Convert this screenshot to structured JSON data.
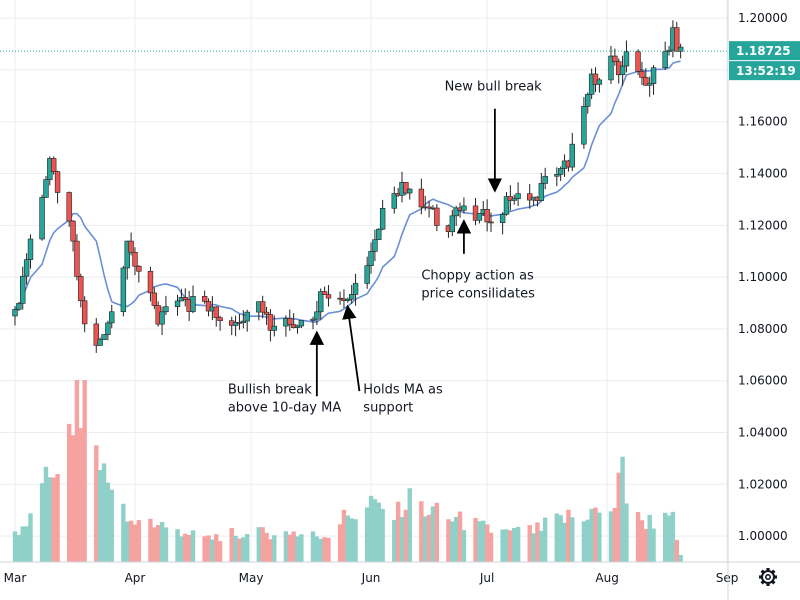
{
  "chart_data": {
    "type": "candlestick",
    "ylim": [
      0.99,
      1.207
    ],
    "y_ticks": [
      "1.20000",
      "1.18000",
      "1.16000",
      "1.14000",
      "1.12000",
      "1.10000",
      "1.08000",
      "1.06000",
      "1.04000",
      "1.02000",
      "1.00000"
    ],
    "x_labels": [
      {
        "label": "Mar",
        "day": 0
      },
      {
        "label": "Apr",
        "day": 31
      },
      {
        "label": "May",
        "day": 61
      },
      {
        "label": "Jun",
        "day": 92
      },
      {
        "label": "Jul",
        "day": 122
      },
      {
        "label": "Aug",
        "day": 153
      },
      {
        "label": "Sep",
        "day": 184
      }
    ],
    "last_price": {
      "value": 1.18725,
      "label": "1.18725",
      "countdown": "13:52:19"
    },
    "close_anchors": [
      [
        0,
        1.085
      ],
      [
        4,
        1.115
      ],
      [
        9,
        1.143
      ],
      [
        14,
        1.122
      ],
      [
        17,
        1.09
      ],
      [
        20,
        1.069
      ],
      [
        23,
        1.08
      ],
      [
        26,
        1.09
      ],
      [
        29,
        1.111
      ],
      [
        33,
        1.1
      ],
      [
        37,
        1.082
      ],
      [
        41,
        1.094
      ],
      [
        45,
        1.088
      ],
      [
        47,
        1.097
      ],
      [
        52,
        1.084
      ],
      [
        56,
        1.083
      ],
      [
        59,
        1.085
      ],
      [
        62,
        1.097
      ],
      [
        66,
        1.081
      ],
      [
        70,
        1.084
      ],
      [
        73,
        1.083
      ],
      [
        76,
        1.082
      ],
      [
        79,
        1.093
      ],
      [
        82,
        1.095
      ],
      [
        85,
        1.091
      ],
      [
        88,
        1.095
      ],
      [
        90,
        1.1
      ],
      [
        94,
        1.117
      ],
      [
        96,
        1.131
      ],
      [
        99,
        1.133
      ],
      [
        102,
        1.136
      ],
      [
        105,
        1.128
      ],
      [
        108,
        1.124
      ],
      [
        111,
        1.117
      ],
      [
        114,
        1.127
      ],
      [
        117,
        1.124
      ],
      [
        120,
        1.123
      ],
      [
        123,
        1.124
      ],
      [
        126,
        1.126
      ],
      [
        128,
        1.131
      ],
      [
        131,
        1.13
      ],
      [
        134,
        1.129
      ],
      [
        137,
        1.137
      ],
      [
        140,
        1.138
      ],
      [
        143,
        1.145
      ],
      [
        146,
        1.16
      ],
      [
        149,
        1.176
      ],
      [
        152,
        1.18
      ],
      [
        154,
        1.183
      ],
      [
        156,
        1.178
      ],
      [
        158,
        1.188
      ],
      [
        160,
        1.187
      ],
      [
        162,
        1.177
      ],
      [
        164,
        1.175
      ],
      [
        166,
        1.184
      ],
      [
        168,
        1.186
      ],
      [
        170,
        1.195
      ],
      [
        171,
        1.185
      ],
      [
        172,
        1.187
      ]
    ],
    "volume_range": [
      0,
      0.62
    ],
    "volume_anchors": [
      [
        0,
        0.1
      ],
      [
        5,
        0.15
      ],
      [
        9,
        0.3
      ],
      [
        13,
        0.4
      ],
      [
        16,
        0.55
      ],
      [
        18,
        0.58
      ],
      [
        20,
        0.45
      ],
      [
        23,
        0.3
      ],
      [
        26,
        0.22
      ],
      [
        30,
        0.12
      ],
      [
        35,
        0.14
      ],
      [
        40,
        0.12
      ],
      [
        45,
        0.1
      ],
      [
        50,
        0.08
      ],
      [
        55,
        0.1
      ],
      [
        60,
        0.09
      ],
      [
        65,
        0.1
      ],
      [
        70,
        0.11
      ],
      [
        75,
        0.09
      ],
      [
        80,
        0.09
      ],
      [
        85,
        0.15
      ],
      [
        90,
        0.18
      ],
      [
        95,
        0.2
      ],
      [
        98,
        0.16
      ],
      [
        102,
        0.21
      ],
      [
        106,
        0.18
      ],
      [
        110,
        0.16
      ],
      [
        115,
        0.14
      ],
      [
        120,
        0.12
      ],
      [
        125,
        0.1
      ],
      [
        130,
        0.1
      ],
      [
        135,
        0.11
      ],
      [
        140,
        0.14
      ],
      [
        145,
        0.16
      ],
      [
        150,
        0.17
      ],
      [
        155,
        0.19
      ],
      [
        157,
        0.32
      ],
      [
        159,
        0.15
      ],
      [
        163,
        0.14
      ],
      [
        167,
        0.14
      ],
      [
        170,
        0.14
      ],
      [
        172,
        0.02
      ]
    ],
    "ma_period": 10,
    "annotations": [
      {
        "lines": [
          "Bullish break",
          "above 10-day MA"
        ],
        "text_day": 55,
        "text_price": 1.055,
        "arrow_day": 78,
        "arrow_from": 1.054,
        "arrow_to": 1.078,
        "align": "start"
      },
      {
        "lines": [
          "Holds MA as",
          "support"
        ],
        "text_day": 90,
        "text_price": 1.055,
        "arrow_day": 89,
        "arrow_from": 1.056,
        "arrow_to": 1.088,
        "align": "start",
        "diagonal": true,
        "arrow_to_day": 86
      },
      {
        "lines": [
          "Choppy action as",
          "price consilidates"
        ],
        "text_day": 105,
        "text_price": 1.099,
        "arrow_day": 116,
        "arrow_from": 1.109,
        "arrow_to": 1.121,
        "align": "start"
      },
      {
        "lines": [
          "New bull break"
        ],
        "text_day": 111,
        "text_price": 1.172,
        "arrow_day": 124,
        "arrow_from": 1.165,
        "arrow_to": 1.134,
        "align": "start"
      }
    ],
    "colors": {
      "up": "#26a69a",
      "down": "#ef5350",
      "up_volume": "#8fd1c9",
      "down_volume": "#f5a3a1",
      "ma": "#6b8fd8",
      "grid": "#eceef2",
      "last_price_line": "#26a69a"
    }
  },
  "ui": {
    "settings_icon": "gear-icon"
  }
}
